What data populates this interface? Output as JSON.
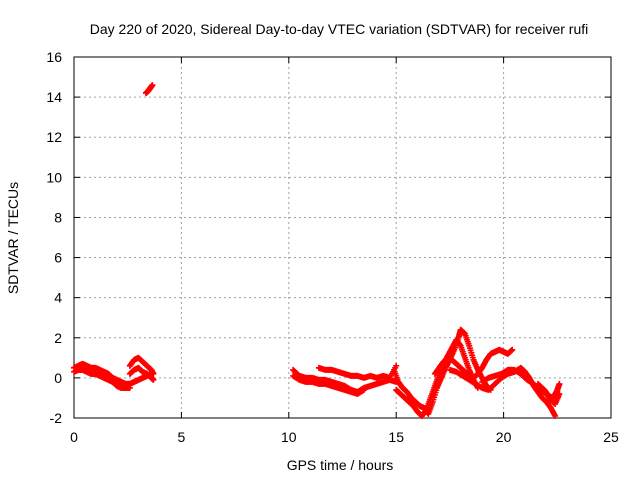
{
  "chart_data": {
    "type": "scatter",
    "title": "Day 220 of 2020, Sidereal Day-to-day VTEC variation (SDTVAR) for receiver rufi",
    "xlabel": "GPS time / hours",
    "ylabel": "SDTVAR / TECUs",
    "xlim": [
      0,
      25
    ],
    "ylim": [
      -2,
      16
    ],
    "xticks": [
      0,
      5,
      10,
      15,
      20,
      25
    ],
    "yticks": [
      -2,
      0,
      2,
      4,
      6,
      8,
      10,
      12,
      14,
      16
    ],
    "xtick_labels": [
      "0",
      "5",
      "10",
      "15",
      "20",
      "25"
    ],
    "ytick_labels": [
      "-2",
      "0",
      "2",
      "4",
      "6",
      "8",
      "10",
      "12",
      "14",
      "16"
    ],
    "grid": true,
    "marker": "+",
    "color": "#ff0000",
    "series": [
      {
        "name": "SDTVAR",
        "segments": [
          [
            [
              0.0,
              0.5
            ],
            [
              0.2,
              0.6
            ],
            [
              0.4,
              0.7
            ],
            [
              0.6,
              0.6
            ],
            [
              0.8,
              0.5
            ],
            [
              1.0,
              0.5
            ],
            [
              1.2,
              0.4
            ],
            [
              1.4,
              0.3
            ],
            [
              1.6,
              0.2
            ],
            [
              1.8,
              0.0
            ],
            [
              2.0,
              -0.1
            ],
            [
              2.2,
              -0.2
            ],
            [
              2.4,
              -0.3
            ],
            [
              2.6,
              -0.3
            ],
            [
              2.8,
              -0.2
            ],
            [
              3.0,
              -0.1
            ],
            [
              3.2,
              0.0
            ],
            [
              3.4,
              0.1
            ],
            [
              3.6,
              0.2
            ]
          ],
          [
            [
              0.0,
              0.3
            ],
            [
              0.2,
              0.4
            ],
            [
              0.4,
              0.4
            ],
            [
              0.6,
              0.3
            ],
            [
              0.8,
              0.2
            ],
            [
              1.0,
              0.2
            ],
            [
              1.2,
              0.1
            ],
            [
              1.4,
              0.0
            ],
            [
              1.6,
              -0.1
            ],
            [
              1.8,
              -0.2
            ],
            [
              2.0,
              -0.4
            ],
            [
              2.2,
              -0.5
            ],
            [
              2.4,
              -0.5
            ],
            [
              2.6,
              -0.5
            ]
          ],
          [
            [
              2.6,
              0.6
            ],
            [
              2.8,
              0.9
            ],
            [
              3.0,
              1.0
            ],
            [
              3.2,
              0.8
            ],
            [
              3.4,
              0.6
            ],
            [
              3.6,
              0.4
            ],
            [
              3.7,
              0.2
            ]
          ],
          [
            [
              2.6,
              0.2
            ],
            [
              2.8,
              0.4
            ],
            [
              3.0,
              0.5
            ],
            [
              3.2,
              0.3
            ],
            [
              3.4,
              0.2
            ],
            [
              3.6,
              0.0
            ],
            [
              3.7,
              -0.1
            ]
          ],
          [
            [
              3.35,
              14.2
            ],
            [
              3.45,
              14.3
            ],
            [
              3.55,
              14.45
            ],
            [
              3.65,
              14.6
            ]
          ],
          [
            [
              10.2,
              0.4
            ],
            [
              10.5,
              0.1
            ],
            [
              10.8,
              0.0
            ],
            [
              11.1,
              0.0
            ],
            [
              11.4,
              -0.1
            ],
            [
              11.7,
              -0.1
            ],
            [
              12.0,
              -0.2
            ],
            [
              12.3,
              -0.3
            ],
            [
              12.6,
              -0.4
            ],
            [
              12.9,
              -0.6
            ],
            [
              13.2,
              -0.7
            ],
            [
              13.5,
              -0.5
            ],
            [
              13.8,
              -0.4
            ],
            [
              14.1,
              -0.3
            ],
            [
              14.4,
              -0.2
            ],
            [
              14.7,
              -0.1
            ],
            [
              15.0,
              -0.2
            ]
          ],
          [
            [
              10.2,
              0.1
            ],
            [
              10.5,
              -0.1
            ],
            [
              10.8,
              -0.2
            ],
            [
              11.1,
              -0.2
            ],
            [
              11.4,
              -0.3
            ],
            [
              11.7,
              -0.3
            ],
            [
              12.0,
              -0.4
            ],
            [
              12.3,
              -0.5
            ],
            [
              12.6,
              -0.6
            ],
            [
              12.9,
              -0.7
            ],
            [
              13.2,
              -0.8
            ],
            [
              13.5,
              -0.6
            ]
          ],
          [
            [
              11.4,
              0.5
            ],
            [
              11.7,
              0.4
            ],
            [
              12.0,
              0.4
            ],
            [
              12.3,
              0.3
            ],
            [
              12.6,
              0.2
            ],
            [
              12.9,
              0.1
            ],
            [
              13.2,
              0.1
            ],
            [
              13.5,
              0.0
            ],
            [
              13.8,
              0.1
            ],
            [
              14.1,
              0.0
            ],
            [
              14.4,
              0.1
            ],
            [
              14.7,
              0.0
            ],
            [
              15.0,
              0.6
            ]
          ],
          [
            [
              14.9,
              0.4
            ],
            [
              15.1,
              -0.2
            ],
            [
              15.3,
              -0.5
            ],
            [
              15.5,
              -0.7
            ],
            [
              15.7,
              -1.0
            ],
            [
              15.9,
              -1.2
            ],
            [
              16.1,
              -1.4
            ],
            [
              16.3,
              -1.5
            ],
            [
              16.5,
              -1.8
            ],
            [
              16.7,
              -1.2
            ],
            [
              16.9,
              -0.5
            ],
            [
              17.1,
              0.0
            ],
            [
              17.3,
              0.5
            ],
            [
              17.5,
              0.9
            ],
            [
              17.7,
              1.4
            ],
            [
              17.9,
              2.0
            ],
            [
              18.0,
              2.4
            ],
            [
              18.2,
              2.2
            ],
            [
              18.4,
              1.6
            ],
            [
              18.6,
              0.9
            ],
            [
              18.8,
              0.4
            ],
            [
              19.0,
              0.0
            ],
            [
              19.2,
              -0.4
            ],
            [
              19.4,
              -0.6
            ]
          ],
          [
            [
              15.0,
              -0.6
            ],
            [
              15.2,
              -0.8
            ],
            [
              15.4,
              -1.0
            ],
            [
              15.6,
              -1.2
            ],
            [
              15.8,
              -1.4
            ],
            [
              16.0,
              -1.7
            ],
            [
              16.2,
              -1.9
            ],
            [
              16.4,
              -1.6
            ],
            [
              16.6,
              -1.0
            ],
            [
              16.8,
              -0.4
            ],
            [
              17.0,
              0.2
            ],
            [
              17.2,
              0.7
            ],
            [
              17.4,
              1.1
            ],
            [
              17.6,
              1.5
            ],
            [
              17.8,
              1.9
            ],
            [
              18.0,
              1.6
            ],
            [
              18.2,
              1.0
            ],
            [
              18.4,
              0.4
            ],
            [
              18.6,
              -0.1
            ],
            [
              18.8,
              -0.5
            ]
          ],
          [
            [
              16.8,
              0.2
            ],
            [
              17.0,
              0.5
            ],
            [
              17.2,
              0.8
            ],
            [
              17.4,
              1.0
            ],
            [
              17.6,
              0.9
            ],
            [
              17.8,
              0.7
            ],
            [
              18.0,
              0.5
            ],
            [
              18.2,
              0.3
            ],
            [
              18.4,
              0.1
            ],
            [
              18.6,
              0.0
            ],
            [
              18.8,
              0.2
            ],
            [
              19.0,
              0.5
            ],
            [
              19.2,
              0.9
            ],
            [
              19.4,
              1.2
            ],
            [
              19.6,
              1.3
            ],
            [
              19.8,
              1.4
            ],
            [
              20.0,
              1.3
            ],
            [
              20.2,
              1.2
            ],
            [
              20.4,
              1.4
            ]
          ],
          [
            [
              17.5,
              0.4
            ],
            [
              17.8,
              0.3
            ],
            [
              18.1,
              0.1
            ],
            [
              18.4,
              -0.1
            ],
            [
              18.7,
              -0.3
            ],
            [
              19.0,
              -0.5
            ],
            [
              19.3,
              -0.6
            ],
            [
              19.6,
              -0.3
            ],
            [
              19.9,
              0.0
            ],
            [
              20.2,
              0.2
            ],
            [
              20.5,
              0.3
            ],
            [
              20.8,
              0.5
            ],
            [
              21.0,
              0.3
            ],
            [
              21.2,
              0.0
            ],
            [
              21.4,
              -0.4
            ],
            [
              21.6,
              -0.7
            ],
            [
              21.8,
              -1.0
            ],
            [
              22.0,
              -1.2
            ],
            [
              22.2,
              -1.5
            ],
            [
              22.4,
              -1.9
            ]
          ],
          [
            [
              19.0,
              -0.2
            ],
            [
              19.3,
              0.0
            ],
            [
              19.6,
              0.1
            ],
            [
              19.9,
              0.2
            ],
            [
              20.2,
              0.4
            ],
            [
              20.5,
              0.4
            ],
            [
              20.8,
              0.2
            ],
            [
              21.1,
              -0.1
            ],
            [
              21.4,
              -0.3
            ],
            [
              21.7,
              -0.6
            ],
            [
              22.0,
              -0.8
            ],
            [
              22.2,
              -1.1
            ],
            [
              22.4,
              -1.3
            ],
            [
              22.6,
              -0.8
            ]
          ],
          [
            [
              21.6,
              -0.3
            ],
            [
              21.9,
              -0.6
            ],
            [
              22.1,
              -0.9
            ],
            [
              22.3,
              -1.0
            ],
            [
              22.5,
              -0.6
            ],
            [
              22.6,
              -0.3
            ]
          ]
        ]
      }
    ]
  }
}
